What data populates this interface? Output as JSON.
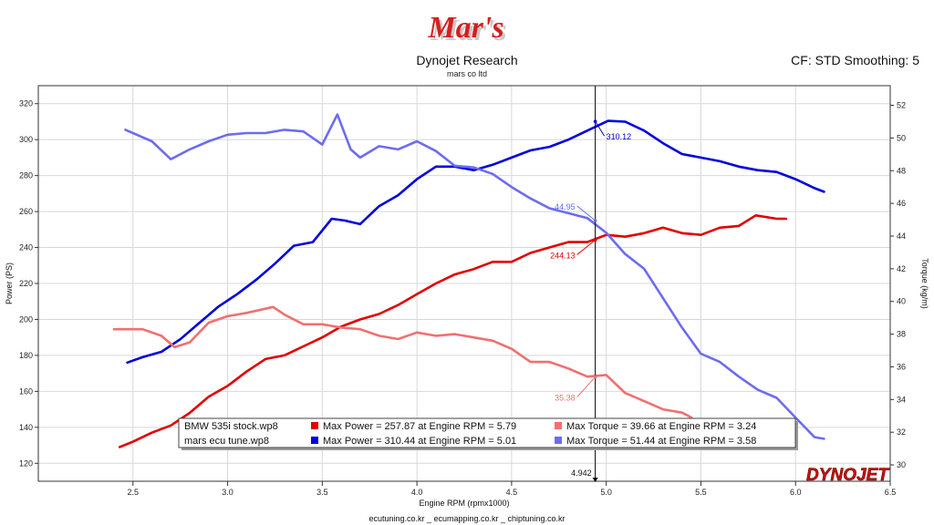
{
  "header": {
    "logo_text": "Mar's",
    "title": "Dynojet Research",
    "subtitle": "mars co ltd",
    "cf_text": "CF: STD Smoothing: 5"
  },
  "footer": {
    "text": "ecutuning.co.kr _ ecumapping.co.kr _ chiptuning.co.kr"
  },
  "brand": {
    "text": "DYNOJET",
    "color": "#cc1111"
  },
  "legend": {
    "rows": [
      {
        "run": "BMW 535i stock.wp8",
        "power_color": "#e00000",
        "power_text": "Max Power = 257.87 at Engine RPM = 5.79",
        "torque_color": "#f07070",
        "torque_text": "Max Torque = 39.66 at Engine RPM = 3.24"
      },
      {
        "run": "mars ecu tune.wp8",
        "power_color": "#0000dd",
        "power_text": "Max Power = 310.44 at Engine RPM = 5.01",
        "torque_color": "#6c6cf0",
        "torque_text": "Max Torque = 51.44 at Engine RPM = 3.58"
      }
    ]
  },
  "chart_data": {
    "type": "line",
    "xlabel": "Engine RPM (rpmx1000)",
    "ylabel": "Power (PS)",
    "y2label": "Torque (kg/m)",
    "xlim": [
      2.0,
      6.5
    ],
    "ylim": [
      110,
      330
    ],
    "y2lim": [
      29.0,
      53.2
    ],
    "x_ticks": [
      "2.5",
      "3.0",
      "3.5",
      "4.0",
      "4.5",
      "5.0",
      "5.5",
      "6.0",
      "6.5"
    ],
    "y_ticks": [
      "120",
      "140",
      "160",
      "180",
      "200",
      "220",
      "240",
      "260",
      "280",
      "300",
      "320"
    ],
    "y2_ticks": [
      "30",
      "32",
      "34",
      "36",
      "38",
      "40",
      "42",
      "44",
      "46",
      "48",
      "50",
      "52"
    ],
    "cursor": {
      "x": 4.942,
      "label": "4.942"
    },
    "annotations": [
      {
        "text": "310.12",
        "series": "tuned-power",
        "x": 4.942,
        "y": 310.12,
        "axis": "left",
        "color": "#0000cc"
      },
      {
        "text": "44.95",
        "series": "tuned-torque",
        "x": 4.942,
        "y": 44.95,
        "axis": "right",
        "color": "#6c6cf0"
      },
      {
        "text": "244.13",
        "series": "stock-power",
        "x": 4.942,
        "y": 244.13,
        "axis": "left",
        "color": "#e00000"
      },
      {
        "text": "35.38",
        "series": "stock-torque",
        "x": 4.942,
        "y": 35.38,
        "axis": "right",
        "color": "#f07070"
      }
    ],
    "series": [
      {
        "id": "stock-power",
        "axis": "left",
        "color": "#e00000",
        "width": 2.6,
        "points": [
          [
            2.43,
            129
          ],
          [
            2.5,
            132
          ],
          [
            2.6,
            137
          ],
          [
            2.7,
            141
          ],
          [
            2.8,
            148
          ],
          [
            2.9,
            157
          ],
          [
            3.0,
            163
          ],
          [
            3.1,
            171
          ],
          [
            3.2,
            178
          ],
          [
            3.3,
            180
          ],
          [
            3.4,
            185
          ],
          [
            3.5,
            190
          ],
          [
            3.6,
            196
          ],
          [
            3.7,
            200
          ],
          [
            3.8,
            203
          ],
          [
            3.9,
            208
          ],
          [
            4.0,
            214
          ],
          [
            4.1,
            220
          ],
          [
            4.2,
            225
          ],
          [
            4.3,
            228
          ],
          [
            4.4,
            232
          ],
          [
            4.5,
            232
          ],
          [
            4.6,
            237
          ],
          [
            4.7,
            240
          ],
          [
            4.8,
            243
          ],
          [
            4.9,
            243
          ],
          [
            5.0,
            247
          ],
          [
            5.1,
            246
          ],
          [
            5.2,
            248
          ],
          [
            5.3,
            251
          ],
          [
            5.4,
            248
          ],
          [
            5.5,
            247
          ],
          [
            5.6,
            251
          ],
          [
            5.7,
            252
          ],
          [
            5.79,
            257.87
          ],
          [
            5.9,
            256
          ],
          [
            5.95,
            256
          ]
        ]
      },
      {
        "id": "tuned-power",
        "axis": "left",
        "color": "#0000dd",
        "width": 2.6,
        "points": [
          [
            2.47,
            176
          ],
          [
            2.55,
            179
          ],
          [
            2.65,
            182
          ],
          [
            2.75,
            189
          ],
          [
            2.85,
            198
          ],
          [
            2.95,
            207
          ],
          [
            3.05,
            214
          ],
          [
            3.15,
            222
          ],
          [
            3.25,
            231
          ],
          [
            3.35,
            241
          ],
          [
            3.45,
            243
          ],
          [
            3.55,
            256
          ],
          [
            3.62,
            255
          ],
          [
            3.7,
            253
          ],
          [
            3.8,
            263
          ],
          [
            3.9,
            269
          ],
          [
            4.0,
            278
          ],
          [
            4.1,
            285
          ],
          [
            4.2,
            285
          ],
          [
            4.3,
            283
          ],
          [
            4.4,
            286
          ],
          [
            4.5,
            290
          ],
          [
            4.6,
            294
          ],
          [
            4.7,
            296
          ],
          [
            4.8,
            300
          ],
          [
            4.9,
            305
          ],
          [
            5.01,
            310.44
          ],
          [
            5.1,
            310
          ],
          [
            5.2,
            305
          ],
          [
            5.3,
            298
          ],
          [
            5.4,
            292
          ],
          [
            5.5,
            290
          ],
          [
            5.6,
            288
          ],
          [
            5.7,
            285
          ],
          [
            5.8,
            283
          ],
          [
            5.9,
            282
          ],
          [
            6.0,
            278
          ],
          [
            6.1,
            273
          ],
          [
            6.15,
            271
          ]
        ]
      },
      {
        "id": "stock-torque",
        "axis": "right",
        "color": "#f07070",
        "width": 2.6,
        "points": [
          [
            2.4,
            38.3
          ],
          [
            2.55,
            38.3
          ],
          [
            2.65,
            37.9
          ],
          [
            2.72,
            37.2
          ],
          [
            2.8,
            37.5
          ],
          [
            2.9,
            38.7
          ],
          [
            3.0,
            39.1
          ],
          [
            3.1,
            39.3
          ],
          [
            3.24,
            39.66
          ],
          [
            3.3,
            39.2
          ],
          [
            3.4,
            38.6
          ],
          [
            3.5,
            38.6
          ],
          [
            3.6,
            38.4
          ],
          [
            3.7,
            38.3
          ],
          [
            3.8,
            37.9
          ],
          [
            3.9,
            37.7
          ],
          [
            4.0,
            38.1
          ],
          [
            4.1,
            37.9
          ],
          [
            4.2,
            38.0
          ],
          [
            4.3,
            37.8
          ],
          [
            4.4,
            37.6
          ],
          [
            4.5,
            37.1
          ],
          [
            4.6,
            36.3
          ],
          [
            4.7,
            36.3
          ],
          [
            4.8,
            35.9
          ],
          [
            4.9,
            35.4
          ],
          [
            5.0,
            35.5
          ],
          [
            5.1,
            34.4
          ],
          [
            5.2,
            33.9
          ],
          [
            5.3,
            33.4
          ],
          [
            5.4,
            33.2
          ],
          [
            5.45,
            32.9
          ]
        ]
      },
      {
        "id": "tuned-torque",
        "axis": "right",
        "color": "#6c6cf0",
        "width": 2.6,
        "points": [
          [
            2.46,
            50.5
          ],
          [
            2.6,
            49.8
          ],
          [
            2.7,
            48.7
          ],
          [
            2.8,
            49.3
          ],
          [
            2.9,
            49.8
          ],
          [
            3.0,
            50.2
          ],
          [
            3.1,
            50.3
          ],
          [
            3.2,
            50.3
          ],
          [
            3.3,
            50.5
          ],
          [
            3.4,
            50.4
          ],
          [
            3.5,
            49.6
          ],
          [
            3.58,
            51.44
          ],
          [
            3.65,
            49.3
          ],
          [
            3.7,
            48.8
          ],
          [
            3.8,
            49.5
          ],
          [
            3.9,
            49.3
          ],
          [
            4.0,
            49.8
          ],
          [
            4.1,
            49.2
          ],
          [
            4.2,
            48.3
          ],
          [
            4.3,
            48.2
          ],
          [
            4.4,
            47.8
          ],
          [
            4.5,
            47.0
          ],
          [
            4.6,
            46.3
          ],
          [
            4.7,
            45.7
          ],
          [
            4.8,
            45.4
          ],
          [
            4.9,
            45.1
          ],
          [
            5.0,
            44.2
          ],
          [
            5.1,
            42.9
          ],
          [
            5.2,
            42.0
          ],
          [
            5.3,
            40.2
          ],
          [
            5.4,
            38.4
          ],
          [
            5.5,
            36.8
          ],
          [
            5.6,
            36.3
          ],
          [
            5.7,
            35.4
          ],
          [
            5.8,
            34.6
          ],
          [
            5.9,
            34.1
          ],
          [
            6.0,
            32.9
          ],
          [
            6.1,
            31.7
          ],
          [
            6.15,
            31.6
          ]
        ]
      }
    ]
  }
}
